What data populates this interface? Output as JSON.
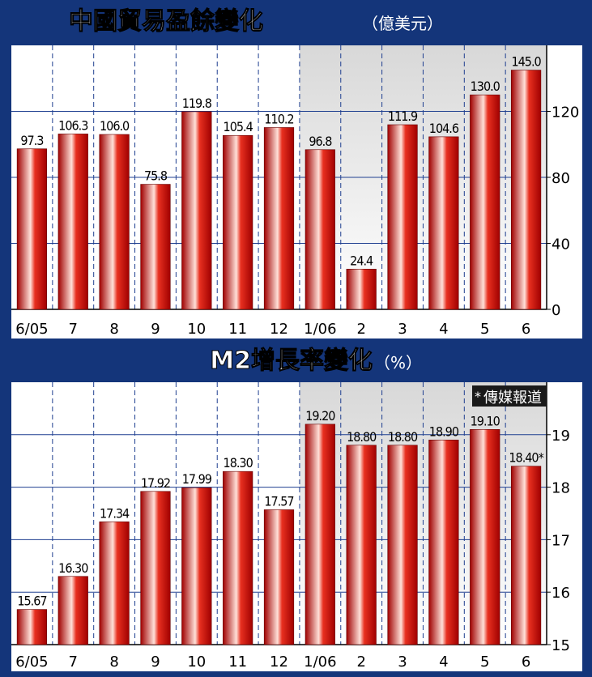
{
  "colors": {
    "frame": "#14357a",
    "bar_dark": "#b40000",
    "bar_light": "#ffd6d0",
    "grid": "#2a4a9a"
  },
  "chart_data": [
    {
      "type": "bar",
      "title": "中國貿易盈餘變化",
      "unit": "（億美元）",
      "categories": [
        "6/05",
        "7",
        "8",
        "9",
        "10",
        "11",
        "12",
        "1/06",
        "2",
        "3",
        "4",
        "5",
        "6"
      ],
      "values": [
        97.3,
        106.3,
        106.0,
        75.8,
        119.8,
        105.4,
        110.2,
        96.8,
        24.4,
        111.9,
        104.6,
        130.0,
        145.0
      ],
      "value_labels": [
        "97.3",
        "106.3",
        "106.0",
        "75.8",
        "119.8",
        "105.4",
        "110.2",
        "96.8",
        "24.4",
        "111.9",
        "104.6",
        "130.0",
        "145.0"
      ],
      "ylim": [
        0,
        160
      ],
      "yticks": [
        0,
        40,
        80,
        120
      ],
      "y_axis_side": "right",
      "grid": true
    },
    {
      "type": "bar",
      "title": "M2增長率變化",
      "unit": "（%）",
      "categories": [
        "6/05",
        "7",
        "8",
        "9",
        "10",
        "11",
        "12",
        "1/06",
        "2",
        "3",
        "4",
        "5",
        "6"
      ],
      "values": [
        15.67,
        16.3,
        17.34,
        17.92,
        17.99,
        18.3,
        17.57,
        19.2,
        18.8,
        18.8,
        18.9,
        19.1,
        18.4
      ],
      "value_labels": [
        "15.67",
        "16.30",
        "17.34",
        "17.92",
        "17.99",
        "18.30",
        "17.57",
        "19.20",
        "18.80",
        "18.80",
        "18.90",
        "19.10",
        "18.40*"
      ],
      "ylim": [
        15,
        20
      ],
      "yticks": [
        15,
        16,
        17,
        18,
        19
      ],
      "y_axis_side": "right",
      "grid": true,
      "annotation": "傳媒報道",
      "annotation_mark": "*"
    }
  ]
}
